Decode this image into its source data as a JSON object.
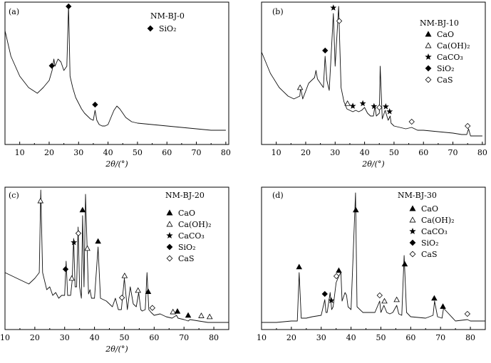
{
  "figure": {
    "panels": [
      {
        "label": "(a)",
        "sample": "NM-BJ-0"
      },
      {
        "label": "(b)",
        "sample": "NM-BJ-10"
      },
      {
        "label": "(c)",
        "sample": "NM-BJ-20"
      },
      {
        "label": "(d)",
        "sample": "NM-BJ-30"
      }
    ]
  },
  "chart_data": [
    {
      "type": "line",
      "panel": "(a)",
      "title": "NM-BJ-0",
      "xlabel": "2θ/(°)",
      "ylabel": "",
      "xlim": [
        5,
        81
      ],
      "xticks": [
        10,
        20,
        30,
        40,
        50,
        60,
        70,
        80
      ],
      "ylim": [
        0,
        100
      ],
      "grid": false,
      "legend_position": "top-right",
      "legend": [
        {
          "marker": "diamond-filled",
          "label": "SiO₂"
        }
      ],
      "series": [
        {
          "x": [
            5,
            7,
            10,
            13,
            16,
            18,
            20,
            21,
            21.6,
            22,
            23,
            24,
            25,
            26,
            26.6,
            27.1,
            28,
            29,
            30,
            31,
            32,
            33,
            34,
            35,
            35.6,
            36.2,
            37,
            38,
            39,
            40,
            41,
            42,
            43,
            44,
            45,
            46,
            48,
            50,
            55,
            60,
            65,
            70,
            75,
            80
          ],
          "y": [
            80,
            62,
            48,
            40,
            36,
            40,
            45,
            52,
            60,
            55,
            60,
            58,
            52,
            55,
            98,
            48,
            40,
            33,
            29,
            25,
            22,
            20,
            18,
            17,
            24,
            17,
            14,
            13,
            13,
            14,
            19,
            24,
            27,
            25,
            22,
            19,
            16,
            15,
            14,
            13,
            12,
            11,
            10,
            10
          ]
        }
      ],
      "peaks": [
        {
          "phase": "SiO₂",
          "x": [
            20.9,
            26.6,
            35.6
          ]
        }
      ]
    },
    {
      "type": "line",
      "panel": "(b)",
      "title": "NM-BJ-10",
      "xlabel": "2θ/(°)",
      "ylabel": "",
      "xlim": [
        5,
        81
      ],
      "xticks": [
        10,
        20,
        30,
        40,
        50,
        60,
        70,
        80
      ],
      "ylim": [
        0,
        100
      ],
      "grid": false,
      "legend_position": "top-right",
      "legend": [
        {
          "marker": "triangle-filled",
          "label": "CaO"
        },
        {
          "marker": "triangle-open",
          "label": "Ca(OH)₂"
        },
        {
          "marker": "star",
          "label": "CaCO₃"
        },
        {
          "marker": "diamond-filled",
          "label": "SiO₂"
        },
        {
          "marker": "diamond-open",
          "label": "CaS"
        }
      ],
      "series": [
        {
          "x": [
            5,
            8,
            11,
            14,
            16,
            18,
            18.3,
            19,
            21,
            22,
            23,
            23.5,
            24,
            25,
            26,
            26.6,
            27.2,
            28,
            29.4,
            30,
            31.2,
            32,
            33,
            34,
            35,
            36,
            37,
            38,
            39,
            40,
            41,
            42,
            43,
            43.5,
            44,
            45,
            45.3,
            46,
            47,
            48,
            48.7,
            49,
            50,
            52,
            54,
            56,
            58,
            60,
            65,
            70,
            73,
            74.7,
            75.3,
            76,
            80
          ],
          "y": [
            65,
            50,
            40,
            34,
            32,
            34,
            40,
            32,
            43,
            45,
            47,
            52,
            46,
            43,
            40,
            62,
            45,
            38,
            92,
            55,
            97,
            40,
            30,
            25,
            24,
            23,
            24,
            23,
            24,
            26,
            22,
            20,
            20,
            27,
            20,
            22,
            55,
            18,
            24,
            17,
            20,
            15,
            13,
            12,
            11,
            12,
            10,
            10,
            9,
            8,
            7,
            7,
            11,
            6,
            6
          ]
        }
      ],
      "peaks": [
        {
          "phase": "CaO",
          "x": []
        },
        {
          "phase": "Ca(OH)₂",
          "x": [
            18.1,
            34.2
          ]
        },
        {
          "phase": "CaCO₃",
          "x": [
            29.4,
            36.0,
            39.4,
            43.2,
            47.2,
            48.5
          ]
        },
        {
          "phase": "SiO₂",
          "x": [
            26.6
          ]
        },
        {
          "phase": "CaS",
          "x": [
            31.4,
            45.0,
            56.0,
            75.0
          ]
        }
      ]
    },
    {
      "type": "line",
      "panel": "(c)",
      "title": "NM-BJ-20",
      "xlabel": "2θ/(°)",
      "ylabel": "",
      "xlim": [
        10,
        85
      ],
      "xticks": [
        10,
        20,
        30,
        40,
        50,
        60,
        70,
        80
      ],
      "ylim": [
        0,
        100
      ],
      "grid": false,
      "legend_position": "top-right",
      "legend": [
        {
          "marker": "triangle-filled",
          "label": "CaO"
        },
        {
          "marker": "triangle-open",
          "label": "Ca(OH)₂"
        },
        {
          "marker": "star",
          "label": "CaCO₃"
        },
        {
          "marker": "diamond-filled",
          "label": "SiO₂"
        },
        {
          "marker": "diamond-open",
          "label": "CaS"
        }
      ],
      "series": [
        {
          "x": [
            10,
            12,
            14,
            16,
            18,
            20,
            21.5,
            22,
            22.6,
            24,
            25,
            26,
            27,
            28,
            29,
            30,
            30.5,
            31,
            32,
            32.5,
            33,
            33.5,
            34,
            34.5,
            35,
            35.6,
            36,
            36.5,
            37,
            38,
            38.5,
            39,
            40,
            41.2,
            42,
            44,
            46,
            47,
            48,
            49,
            50,
            51,
            52,
            53,
            54,
            54.8,
            55.5,
            56,
            57,
            57.6,
            58.2,
            59,
            60,
            62,
            64,
            66,
            67.5,
            68,
            70,
            71.4,
            72,
            75,
            78,
            80,
            85
          ],
          "y": [
            40,
            38,
            36,
            34,
            32,
            36,
            40,
            98,
            40,
            28,
            30,
            24,
            26,
            22,
            24,
            24,
            48,
            24,
            24,
            34,
            64,
            30,
            30,
            72,
            30,
            22,
            80,
            30,
            95,
            25,
            28,
            22,
            22,
            58,
            22,
            20,
            16,
            22,
            14,
            14,
            36,
            14,
            30,
            18,
            16,
            26,
            14,
            13,
            14,
            40,
            14,
            12,
            10,
            11,
            9,
            8,
            10,
            8,
            7,
            6,
            7,
            6,
            5,
            5,
            5
          ]
        }
      ],
      "peaks": [
        {
          "phase": "CaO",
          "x": [
            36.0,
            41.2,
            58.0,
            67.8,
            71.4
          ]
        },
        {
          "phase": "Ca(OH)₂",
          "x": [
            21.9,
            32.4,
            37.6,
            50.1,
            54.6,
            66.3,
            75.8,
            78.6
          ]
        },
        {
          "phase": "CaCO₃",
          "x": [
            33.1
          ]
        },
        {
          "phase": "SiO₂",
          "x": [
            30.3
          ]
        },
        {
          "phase": "CaS",
          "x": [
            34.6,
            49.2,
            59.4
          ]
        }
      ]
    },
    {
      "type": "line",
      "panel": "(d)",
      "title": "NM-BJ-30",
      "xlabel": "",
      "ylabel": "",
      "xlim": [
        10,
        85
      ],
      "xticks": [
        10,
        20,
        30,
        40,
        50,
        60,
        70,
        80
      ],
      "ylim": [
        0,
        100
      ],
      "grid": false,
      "legend_position": "top-right",
      "legend": [
        {
          "marker": "triangle-filled",
          "label": "CaO"
        },
        {
          "marker": "triangle-open",
          "label": "Ca(OH)₂"
        },
        {
          "marker": "star",
          "label": "CaCO₃"
        },
        {
          "marker": "diamond-filled",
          "label": "SiO₂"
        },
        {
          "marker": "diamond-open",
          "label": "CaS"
        }
      ],
      "series": [
        {
          "x": [
            10,
            15,
            20,
            22,
            22.6,
            23.3,
            25,
            27,
            30,
            31.2,
            31.6,
            32,
            33,
            33.5,
            34,
            35,
            36,
            36.6,
            37,
            38,
            38.5,
            39,
            40,
            41.5,
            42,
            44,
            46,
            48,
            49.6,
            50,
            51,
            52,
            53,
            54,
            55.3,
            56,
            57,
            57.8,
            58.6,
            60,
            65,
            67.5,
            68,
            69,
            70.5,
            71,
            75,
            79,
            80,
            85
          ],
          "y": [
            5,
            5,
            6,
            6,
            40,
            8,
            8,
            9,
            10,
            21,
            12,
            12,
            26,
            14,
            16,
            33,
            38,
            40,
            20,
            26,
            24,
            16,
            14,
            96,
            16,
            12,
            12,
            12,
            20,
            12,
            17,
            12,
            11,
            12,
            17,
            11,
            10,
            52,
            12,
            9,
            8,
            10,
            20,
            9,
            8,
            15,
            6,
            7,
            6,
            6
          ]
        }
      ],
      "peaks": [
        {
          "phase": "CaO",
          "x": [
            22.6,
            35.9,
            41.6,
            58.0,
            67.9,
            70.8
          ]
        },
        {
          "phase": "Ca(OH)₂",
          "x": [
            51.2,
            55.3
          ]
        },
        {
          "phase": "CaCO₃",
          "x": [
            33.4
          ]
        },
        {
          "phase": "SiO₂",
          "x": [
            31.2
          ]
        },
        {
          "phase": "CaS",
          "x": [
            35.1,
            49.6,
            79.0
          ]
        }
      ]
    }
  ]
}
